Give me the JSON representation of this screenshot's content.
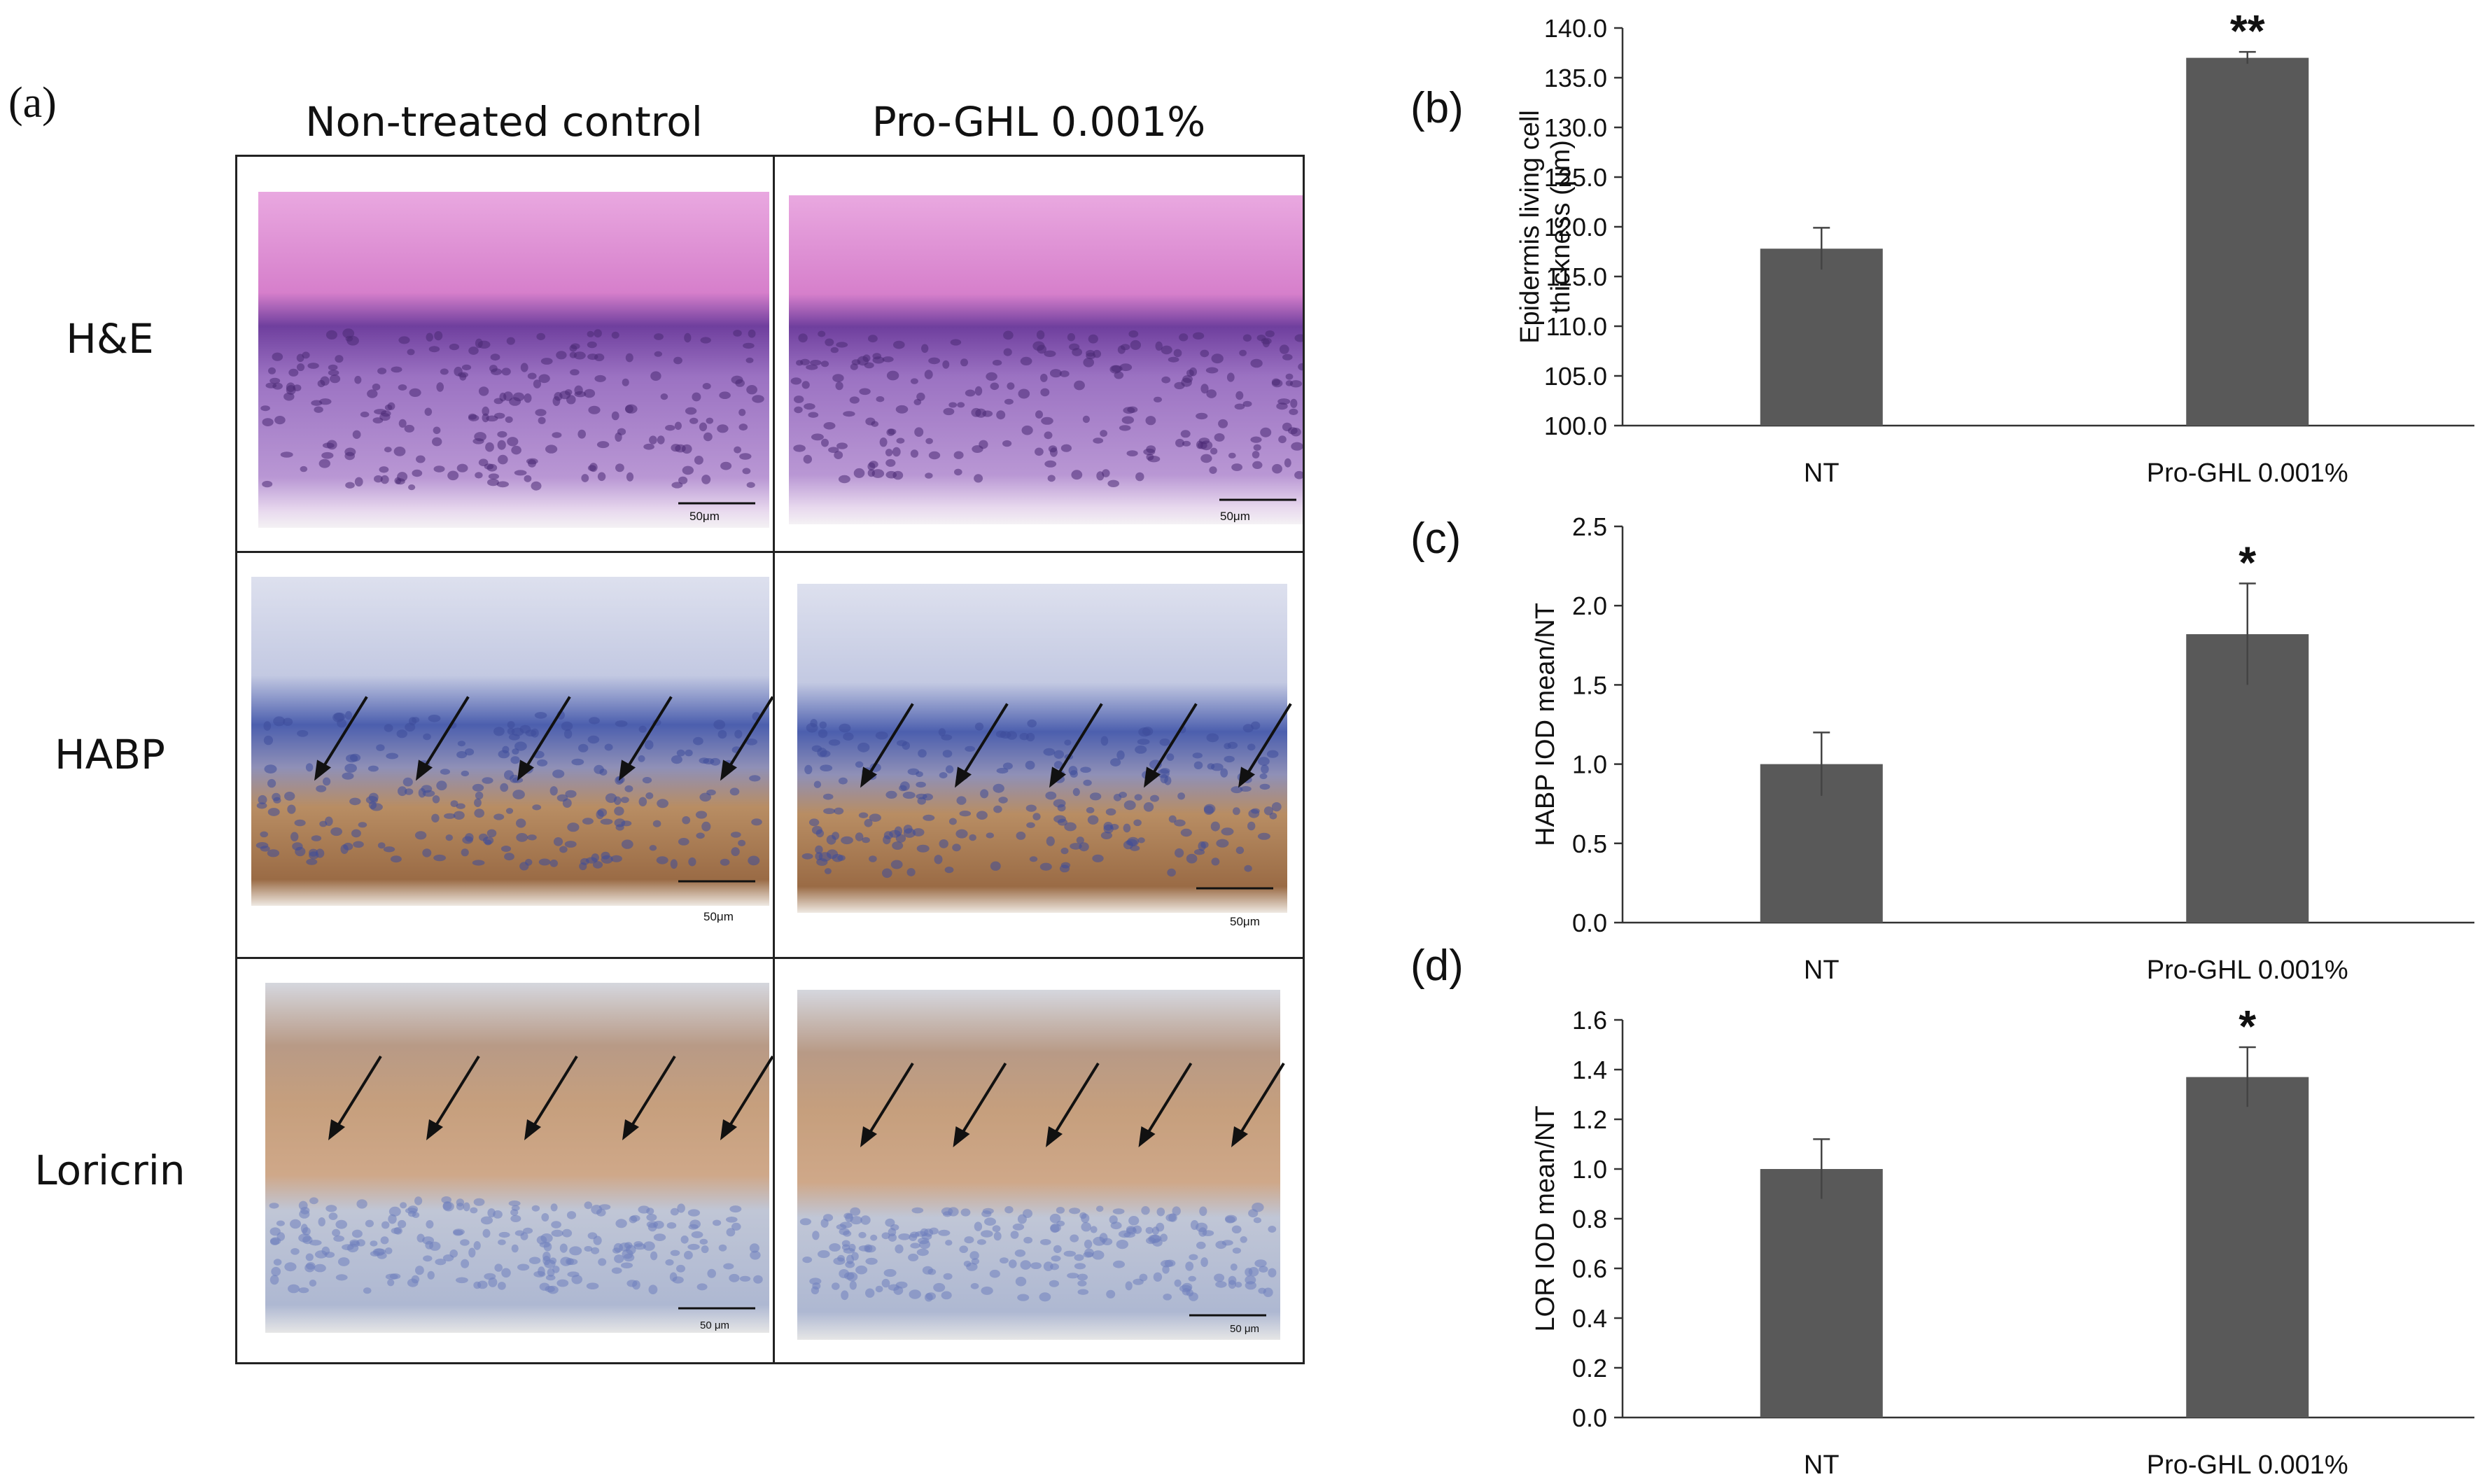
{
  "panel_a": {
    "letter": "(a)",
    "columns": [
      "Non-treated control",
      "Pro-GHL 0.001%"
    ],
    "rows": [
      "H&E",
      "HABP",
      "Loricrin"
    ],
    "scale_bars": [
      "50μm",
      "50μm",
      "50μm",
      "50μm",
      "50 μm",
      "50 μm"
    ]
  },
  "colors": {
    "bar": "#595959",
    "axis": "#333333",
    "he_top": "#d67fcb",
    "he_mid": "#7b4aa6",
    "he_base": "#c9a4d8",
    "habp_top": "#c8cde3",
    "habp_mid": "#5a6db8",
    "habp_base": "#b98a5c",
    "lor_top": "#c9ccd6",
    "lor_mid": "#c79c74",
    "lor_base": "#b9c1d6"
  },
  "chart_data": [
    {
      "panel": "(b)",
      "type": "bar",
      "categories": [
        "NT",
        "Pro-GHL 0.001%"
      ],
      "values": [
        117.8,
        137.0
      ],
      "errors": [
        2.1,
        0.6
      ],
      "significance": [
        "",
        "**"
      ],
      "ylabel": [
        "Epidermis living cell",
        "thickness (μm)"
      ],
      "ylim": [
        100.0,
        140.0
      ],
      "yticks": [
        "100.0",
        "105.0",
        "110.0",
        "115.0",
        "120.0",
        "125.0",
        "130.0",
        "135.0",
        "140.0"
      ]
    },
    {
      "panel": "(c)",
      "type": "bar",
      "categories": [
        "NT",
        "Pro-GHL 0.001%"
      ],
      "values": [
        1.0,
        1.82
      ],
      "errors": [
        0.2,
        0.32
      ],
      "significance": [
        "",
        "*"
      ],
      "ylabel": [
        "HABP IOD mean/NT"
      ],
      "ylim": [
        0.0,
        2.5
      ],
      "yticks": [
        "0.0",
        "0.5",
        "1.0",
        "1.5",
        "2.0",
        "2.5"
      ]
    },
    {
      "panel": "(d)",
      "type": "bar",
      "categories": [
        "NT",
        "Pro-GHL 0.001%"
      ],
      "values": [
        1.0,
        1.37
      ],
      "errors": [
        0.12,
        0.12
      ],
      "significance": [
        "",
        "*"
      ],
      "ylabel": [
        "LOR IOD mean/NT"
      ],
      "ylim": [
        0.0,
        1.6
      ],
      "yticks": [
        "0.0",
        "0.2",
        "0.4",
        "0.6",
        "0.8",
        "1.0",
        "1.2",
        "1.4",
        "1.6"
      ]
    }
  ]
}
